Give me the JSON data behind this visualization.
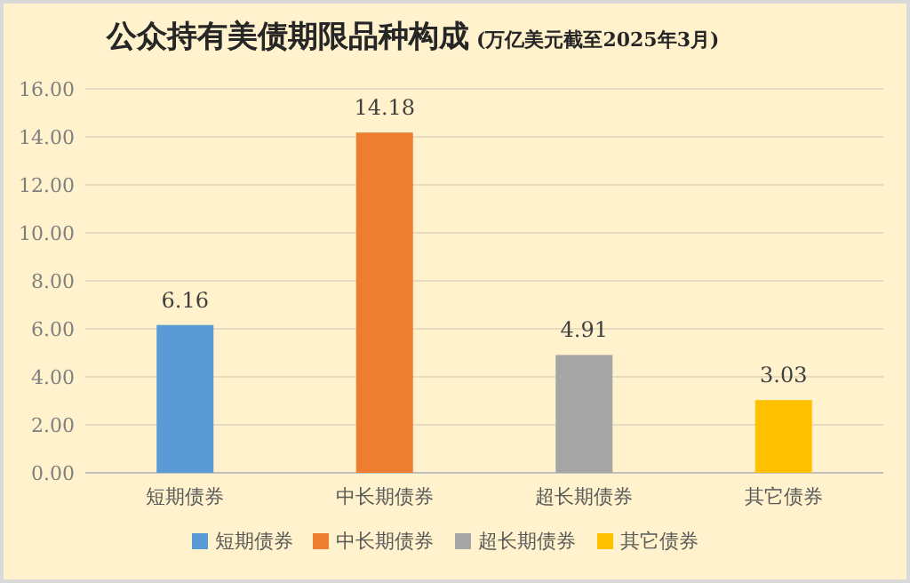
{
  "chart_data": {
    "type": "bar",
    "title": "公众持有美债期限品种构成",
    "subtitle": "(万亿美元截至2025年3月)",
    "categories": [
      "短期债券",
      "中长期债券",
      "超长期债券",
      "其它债券"
    ],
    "series": [
      {
        "name": "短期债券",
        "color": "#5b9bd5",
        "values": [
          6.16,
          null,
          null,
          null
        ]
      },
      {
        "name": "中长期债券",
        "color": "#ed7d31",
        "values": [
          null,
          14.18,
          null,
          null
        ]
      },
      {
        "name": "超长期债券",
        "color": "#a5a5a5",
        "values": [
          null,
          null,
          4.91,
          null
        ]
      },
      {
        "name": "其它债券",
        "color": "#ffc000",
        "values": [
          null,
          null,
          null,
          3.03
        ]
      }
    ],
    "stacked": true,
    "ylim": [
      0,
      16
    ],
    "yticks": [
      {
        "value": 0,
        "label": "0.00"
      },
      {
        "value": 2,
        "label": "2.00"
      },
      {
        "value": 4,
        "label": "4.00"
      },
      {
        "value": 6,
        "label": "6.00"
      },
      {
        "value": 8,
        "label": "8.00"
      },
      {
        "value": 10,
        "label": "10.00"
      },
      {
        "value": 12,
        "label": "12.00"
      },
      {
        "value": 14,
        "label": "14.00"
      },
      {
        "value": 16,
        "label": "16.00"
      }
    ],
    "grid": "y",
    "legend": "bottom",
    "data_labels": true
  }
}
